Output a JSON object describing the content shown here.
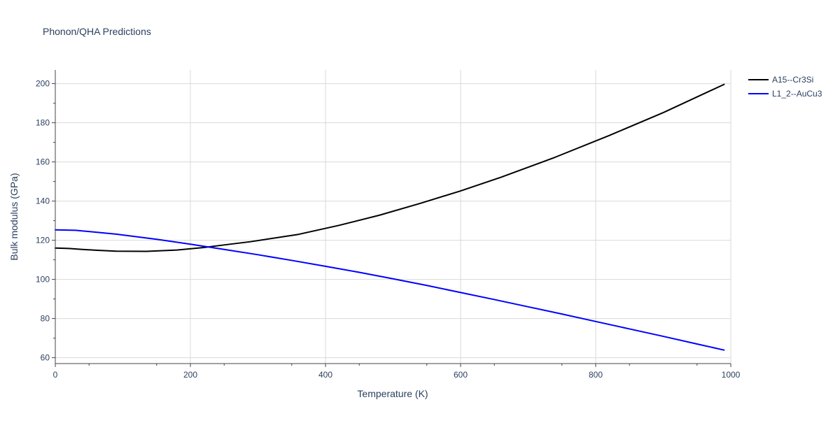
{
  "chart_data": {
    "type": "line",
    "title": "Phonon/QHA Predictions",
    "xlabel": "Temperature (K)",
    "ylabel": "Bulk modulus (GPa)",
    "xlim": [
      0,
      1000
    ],
    "ylim": [
      57,
      207
    ],
    "xticks": [
      0,
      200,
      400,
      600,
      800,
      1000
    ],
    "yticks": [
      60,
      80,
      100,
      120,
      140,
      160,
      180,
      200
    ],
    "grid": true,
    "legend_position": "top-right",
    "series": [
      {
        "name": "A15--Cr3Si",
        "color": "#000000",
        "x": [
          0,
          20,
          40,
          60,
          90,
          135,
          180,
          220,
          250,
          290,
          360,
          420,
          480,
          540,
          600,
          660,
          740,
          820,
          900,
          990
        ],
        "y": [
          116.0,
          115.8,
          115.3,
          114.9,
          114.4,
          114.3,
          115.0,
          116.3,
          117.6,
          119.3,
          123.0,
          127.6,
          132.8,
          138.8,
          145.2,
          152.2,
          162.4,
          173.5,
          185.2,
          199.6
        ]
      },
      {
        "name": "L1_2--AuCu3",
        "color": "#0000ff",
        "x": [
          0,
          30,
          90,
          150,
          200,
          250,
          300,
          350,
          400,
          450,
          500,
          550,
          600,
          650,
          700,
          750,
          800,
          850,
          900,
          950,
          990
        ],
        "y": [
          125.3,
          125.1,
          123.1,
          120.5,
          118.0,
          115.3,
          112.6,
          109.7,
          106.7,
          103.6,
          100.3,
          96.9,
          93.3,
          89.7,
          86.0,
          82.3,
          78.5,
          74.7,
          70.9,
          67.0,
          63.9
        ]
      }
    ]
  }
}
